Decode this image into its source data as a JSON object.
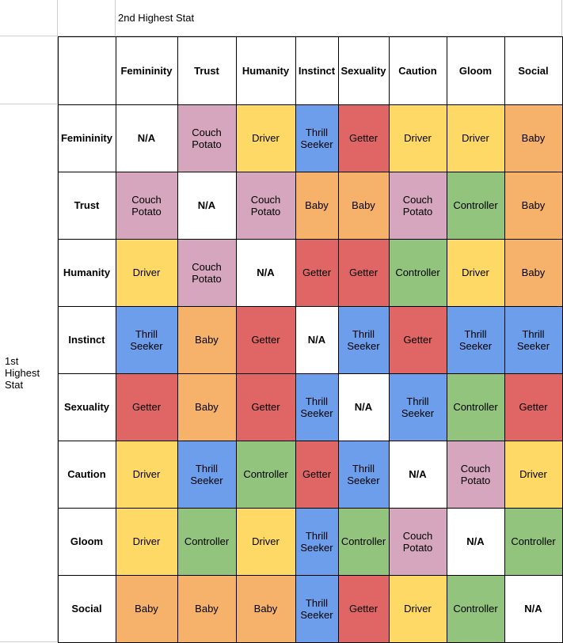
{
  "col_axis_label": "2nd Highest Stat",
  "row_axis_label": "1st Highest Stat",
  "stats": [
    "Femininity",
    "Trust",
    "Humanity",
    "Instinct",
    "Sexuality",
    "Caution",
    "Gloom",
    "Social"
  ],
  "matrix": [
    [
      "N/A",
      "Couch Potato",
      "Driver",
      "Thrill Seeker",
      "Getter",
      "Driver",
      "Driver",
      "Baby"
    ],
    [
      "Couch Potato",
      "N/A",
      "Couch Potato",
      "Baby",
      "Baby",
      "Couch Potato",
      "Controller",
      "Baby"
    ],
    [
      "Driver",
      "Couch Potato",
      "N/A",
      "Getter",
      "Getter",
      "Controller",
      "Driver",
      "Baby"
    ],
    [
      "Thrill Seeker",
      "Baby",
      "Getter",
      "N/A",
      "Thrill Seeker",
      "Getter",
      "Thrill Seeker",
      "Thrill Seeker"
    ],
    [
      "Getter",
      "Baby",
      "Getter",
      "Thrill Seeker",
      "N/A",
      "Thrill Seeker",
      "Controller",
      "Getter"
    ],
    [
      "Driver",
      "Thrill Seeker",
      "Controller",
      "Getter",
      "Thrill Seeker",
      "N/A",
      "Couch Potato",
      "Driver"
    ],
    [
      "Driver",
      "Controller",
      "Driver",
      "Thrill Seeker",
      "Controller",
      "Couch Potato",
      "N/A",
      "Controller"
    ],
    [
      "Baby",
      "Baby",
      "Baby",
      "Thrill Seeker",
      "Getter",
      "Driver",
      "Controller",
      "N/A"
    ]
  ],
  "colors": {
    "N/A": "#ffffff",
    "Couch Potato": "#d5a6bd",
    "Driver": "#ffd966",
    "Thrill Seeker": "#6d9eeb",
    "Getter": "#e06666",
    "Baby": "#f6b26b",
    "Controller": "#93c47d"
  }
}
